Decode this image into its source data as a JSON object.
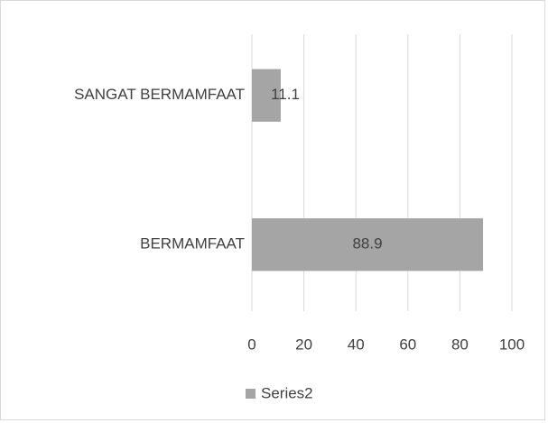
{
  "chart_data": {
    "type": "bar",
    "orientation": "horizontal",
    "categories": [
      "SANGAT BERMAMFAAT",
      "BERMAMFAAT"
    ],
    "series": [
      {
        "name": "Series2",
        "color": "#a5a5a5",
        "values": [
          11.1,
          88.9
        ]
      }
    ],
    "xlim": [
      0,
      100
    ],
    "xticks": [
      0,
      20,
      40,
      60,
      80,
      100
    ],
    "grid": true,
    "legend": "bottom"
  }
}
